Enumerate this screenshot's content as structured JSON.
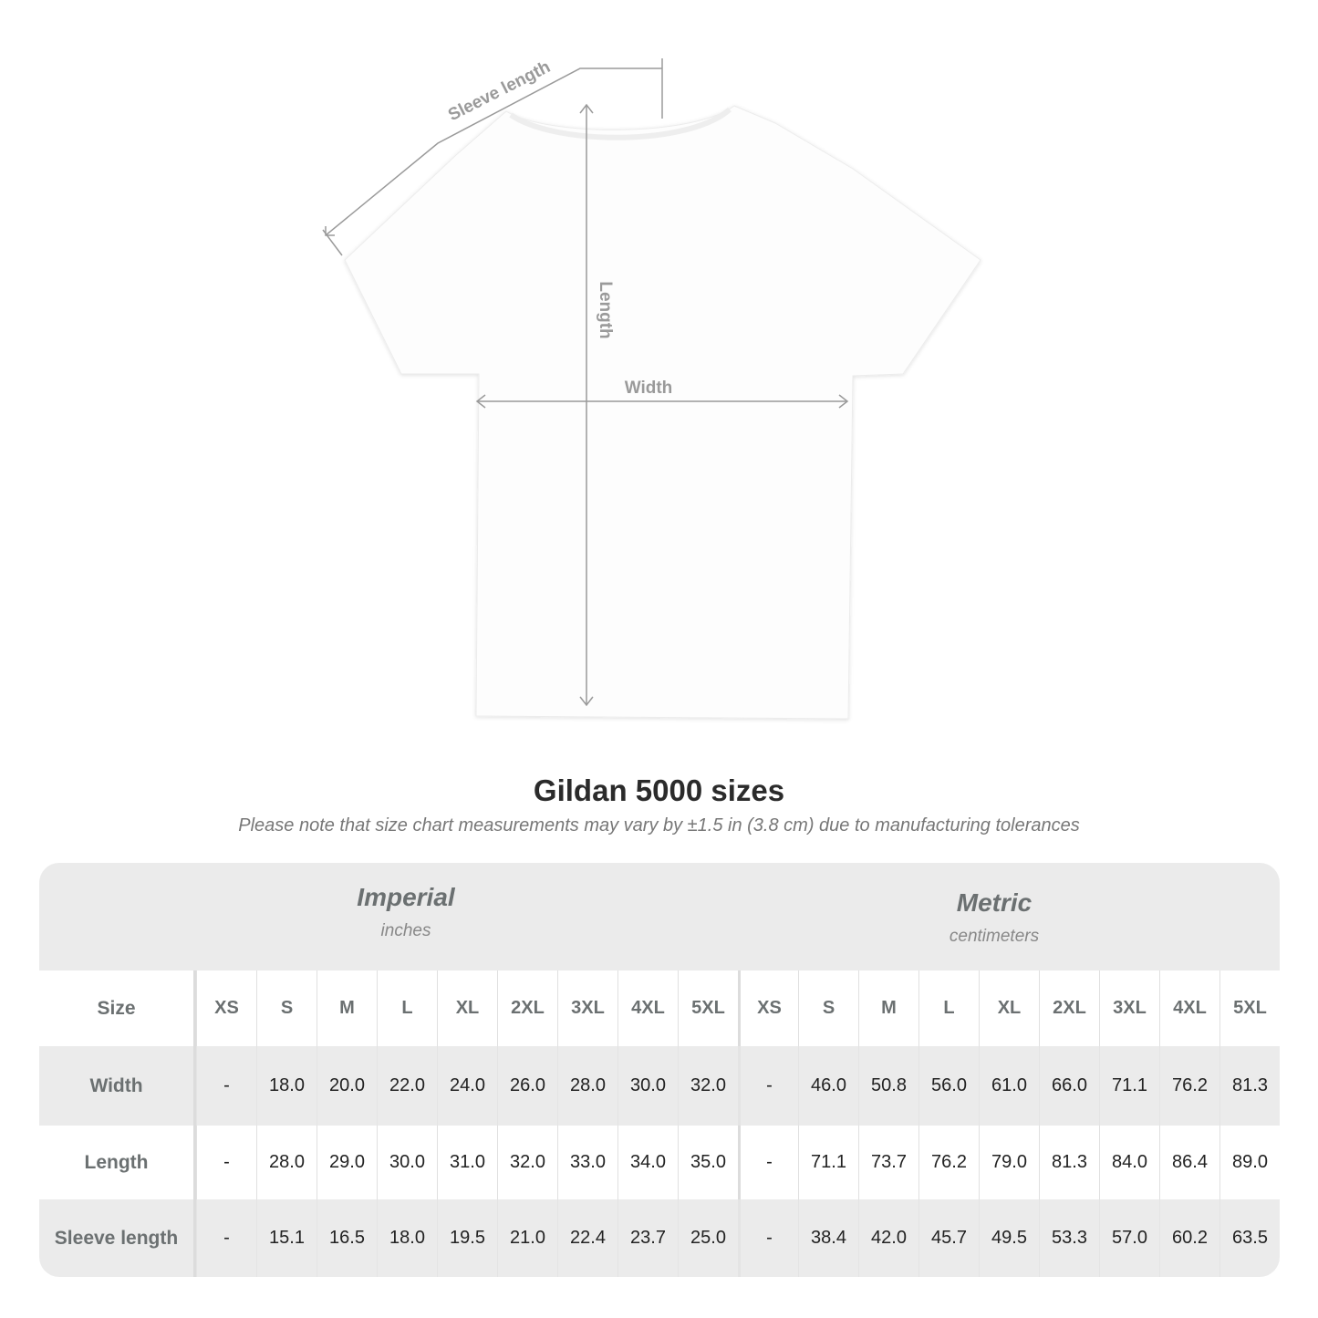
{
  "diagram": {
    "labels": {
      "sleeve": "Sleeve length",
      "length": "Length",
      "width": "Width"
    },
    "line_color": "#9a9a9a",
    "garment_color": "#ffffff"
  },
  "title": "Gildan 5000 sizes",
  "note": "Please note that size chart measurements may vary by ±1.5 in (3.8 cm) due to manufacturing tolerances",
  "table": {
    "imperial": {
      "name": "Imperial",
      "unit": "inches"
    },
    "metric": {
      "name": "Metric",
      "unit": "centimeters"
    },
    "size_label": "Size",
    "sizes": [
      "XS",
      "S",
      "M",
      "L",
      "XL",
      "2XL",
      "3XL",
      "4XL",
      "5XL"
    ],
    "rows": [
      {
        "label": "Width",
        "imperial": [
          "-",
          "18.0",
          "20.0",
          "22.0",
          "24.0",
          "26.0",
          "28.0",
          "30.0",
          "32.0"
        ],
        "metric": [
          "-",
          "46.0",
          "50.8",
          "56.0",
          "61.0",
          "66.0",
          "71.1",
          "76.2",
          "81.3"
        ]
      },
      {
        "label": "Length",
        "imperial": [
          "-",
          "28.0",
          "29.0",
          "30.0",
          "31.0",
          "32.0",
          "33.0",
          "34.0",
          "35.0"
        ],
        "metric": [
          "-",
          "71.1",
          "73.7",
          "76.2",
          "79.0",
          "81.3",
          "84.0",
          "86.4",
          "89.0"
        ]
      },
      {
        "label": "Sleeve length",
        "imperial": [
          "-",
          "15.1",
          "16.5",
          "18.0",
          "19.5",
          "21.0",
          "22.4",
          "23.7",
          "25.0"
        ],
        "metric": [
          "-",
          "38.4",
          "42.0",
          "45.7",
          "49.5",
          "53.3",
          "57.0",
          "60.2",
          "63.5"
        ]
      }
    ]
  }
}
